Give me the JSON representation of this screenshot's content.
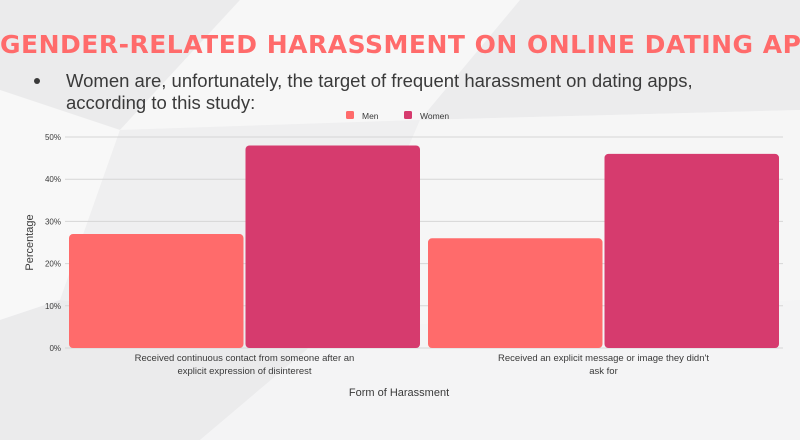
{
  "heading": {
    "title": "GENDER-RELATED HARASSMENT ON ONLINE DATING APPS",
    "bullet": "Women are, unfortunately, the target of frequent harassment on dating apps, according to this study:"
  },
  "colors": {
    "title": "#ff6b6b",
    "men": "#ff6b6b",
    "women": "#d63b6e",
    "grid": "#d6d6d6"
  },
  "chart_data": {
    "type": "bar",
    "xlabel": "Form of Harassment",
    "ylabel": "Percentage",
    "ylim": [
      0,
      50
    ],
    "y_ticks": [
      "0%",
      "10%",
      "20%",
      "30%",
      "40%",
      "50%"
    ],
    "grid": true,
    "legend_position": "top",
    "categories": [
      [
        "Received continuous contact from someone after an",
        "explicit expression of disinterest"
      ],
      [
        "Received an explicit message or image they didn't",
        "ask for"
      ]
    ],
    "series": [
      {
        "name": "Men",
        "color": "#ff6b6b",
        "values": [
          27,
          26
        ]
      },
      {
        "name": "Women",
        "color": "#d63b6e",
        "values": [
          48,
          46
        ]
      }
    ]
  }
}
